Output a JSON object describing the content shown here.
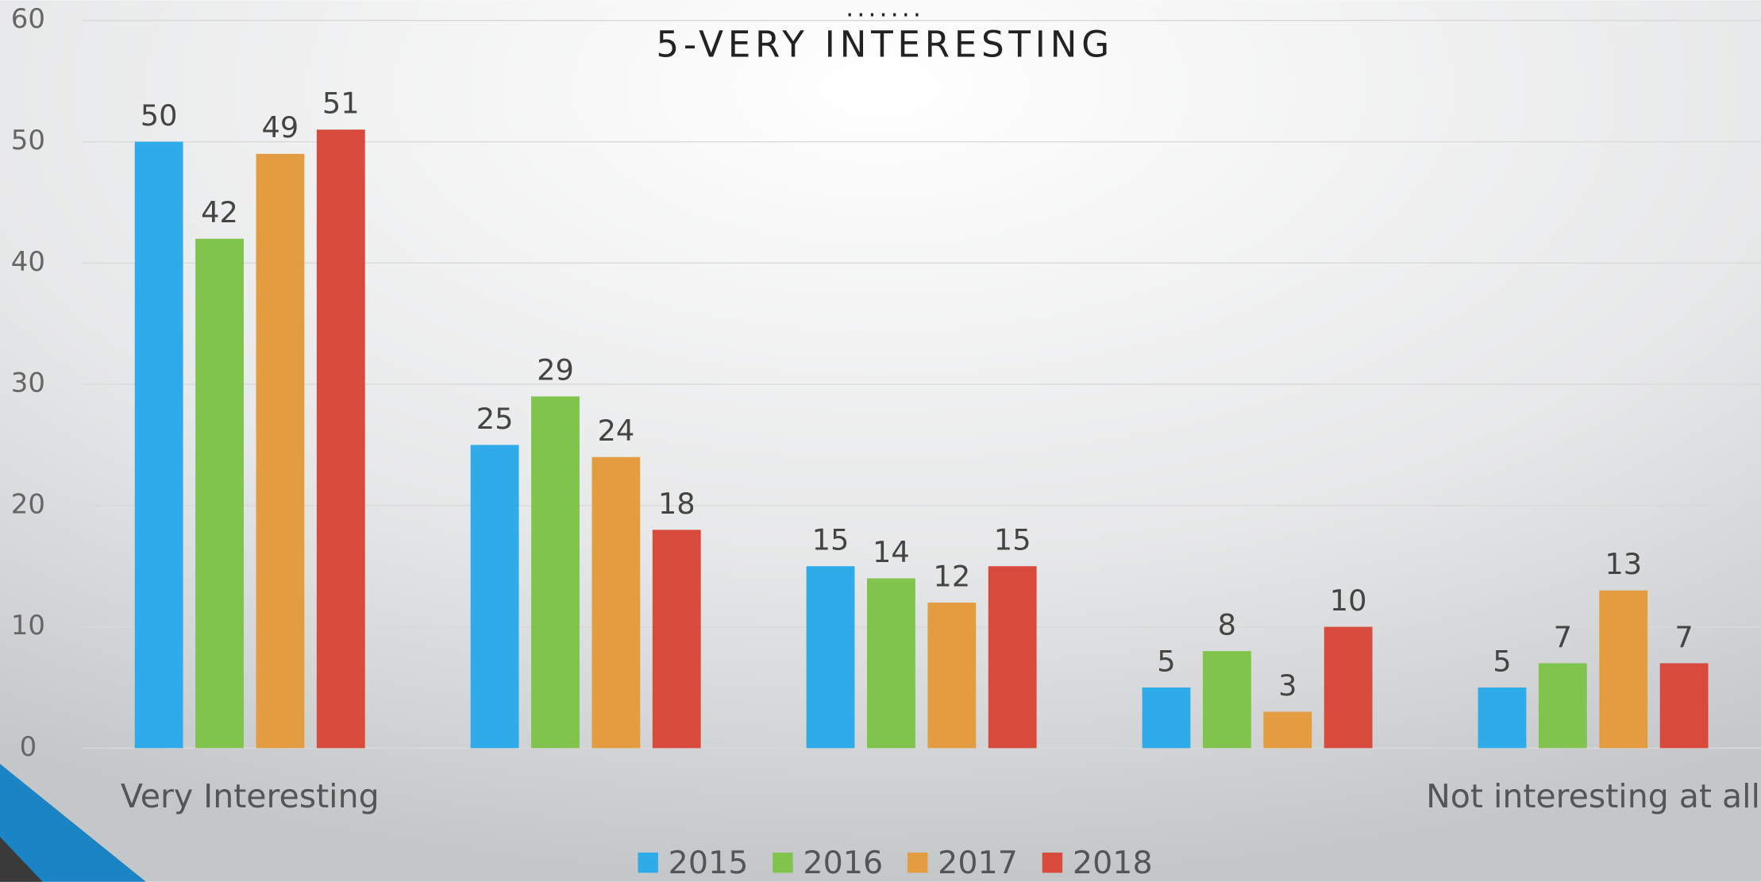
{
  "chart_data": {
    "type": "bar",
    "subtitle": ".......",
    "title": "5-VERY INTERESTING",
    "categories": [
      "Very Interesting",
      null,
      null,
      null,
      "Not interesting at all"
    ],
    "series": [
      {
        "name": "2015",
        "color": "#2fabea",
        "values": [
          50,
          25,
          15,
          5,
          5
        ]
      },
      {
        "name": "2016",
        "color": "#80c34d",
        "values": [
          42,
          29,
          14,
          8,
          7
        ]
      },
      {
        "name": "2017",
        "color": "#e39c3f",
        "values": [
          49,
          24,
          12,
          3,
          13
        ]
      },
      {
        "name": "2018",
        "color": "#d84b3c",
        "values": [
          51,
          18,
          15,
          10,
          7
        ]
      }
    ],
    "ylim": [
      0,
      60
    ],
    "yticks": [
      0,
      10,
      20,
      30,
      40,
      50,
      60
    ],
    "grid": true,
    "legend": "bottom"
  }
}
